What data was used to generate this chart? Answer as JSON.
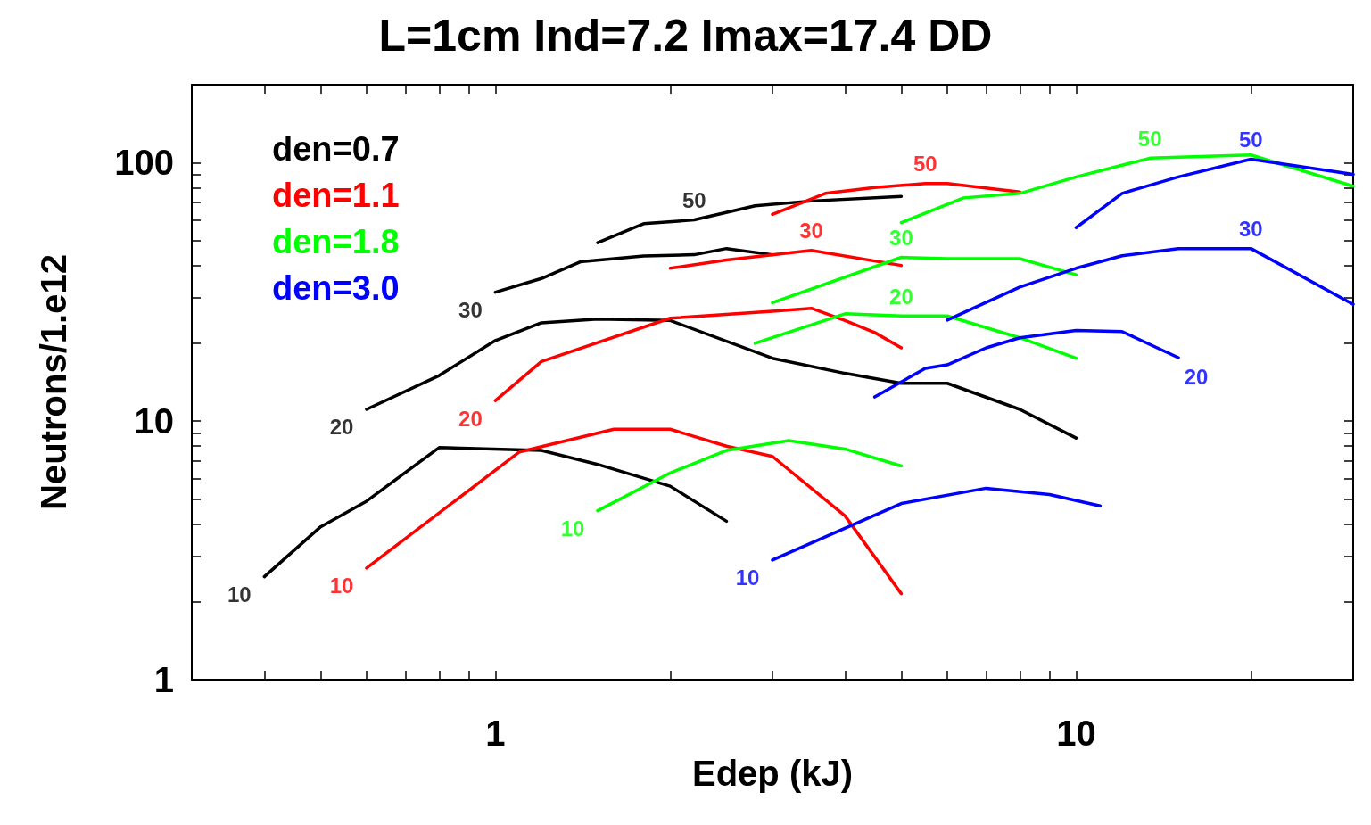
{
  "chart_data": {
    "type": "line",
    "title": "L=1cm Ind=7.2 Imax=17.4 DD",
    "xlabel": "Edep (kJ)",
    "ylabel": "Neutrons/1.e12",
    "log": "xy",
    "xlim": [
      0.3,
      30
    ],
    "ylim": [
      1,
      200
    ],
    "xticks": [
      {
        "value": 0.3,
        "label": null
      },
      {
        "value": 0.4,
        "label": null
      },
      {
        "value": 0.5,
        "label": null
      },
      {
        "value": 0.6,
        "label": null
      },
      {
        "value": 0.7,
        "label": null
      },
      {
        "value": 0.8,
        "label": null
      },
      {
        "value": 0.9,
        "label": null
      },
      1,
      {
        "value": 2,
        "label": null
      },
      {
        "value": 3,
        "label": null
      },
      {
        "value": 4,
        "label": null
      },
      {
        "value": 5,
        "label": null
      },
      {
        "value": 6,
        "label": null
      },
      {
        "value": 7,
        "label": null
      },
      {
        "value": 8,
        "label": null
      },
      {
        "value": 9,
        "label": null
      },
      10,
      {
        "value": 20,
        "label": null
      },
      {
        "value": 30,
        "label": null
      }
    ],
    "yticks": [
      1,
      {
        "value": 2,
        "label": null
      },
      {
        "value": 3,
        "label": null
      },
      {
        "value": 4,
        "label": null
      },
      {
        "value": 5,
        "label": null
      },
      {
        "value": 6,
        "label": null
      },
      {
        "value": 7,
        "label": null
      },
      {
        "value": 8,
        "label": null
      },
      {
        "value": 9,
        "label": null
      },
      10,
      {
        "value": 20,
        "label": null
      },
      {
        "value": 30,
        "label": null
      },
      {
        "value": 40,
        "label": null
      },
      {
        "value": 50,
        "label": null
      },
      {
        "value": 60,
        "label": null
      },
      {
        "value": 70,
        "label": null
      },
      {
        "value": 80,
        "label": null
      },
      {
        "value": 90,
        "label": null
      },
      100,
      {
        "value": 200,
        "label": null
      }
    ],
    "grid": false,
    "legend": "top left",
    "marker": "none",
    "line_style": "solid",
    "series": [
      {
        "name": "den=0.7",
        "color": "#000000",
        "x": [
          0.4,
          0.5,
          0.6,
          0.8,
          1.2,
          1.5,
          2.0,
          2.5
        ],
        "values": [
          2.5,
          3.9,
          4.9,
          7.9,
          7.7,
          6.8,
          5.6,
          4.1
        ]
      },
      {
        "color": "#000000",
        "x": [
          0.6,
          0.8,
          1.0,
          1.2,
          1.5,
          2.0,
          3.0,
          4.0,
          5.0,
          6.0,
          8.0,
          10
        ],
        "values": [
          11.1,
          15,
          20.5,
          24,
          24.8,
          24.5,
          17.5,
          15.3,
          14,
          14,
          11.1,
          8.6
        ]
      },
      {
        "color": "#000000",
        "x": [
          1.0,
          1.2,
          1.4,
          1.8,
          2.2,
          2.5,
          3.0
        ],
        "values": [
          31.5,
          35.6,
          41.3,
          43.5,
          44,
          46.5,
          44
        ]
      },
      {
        "color": "#000000",
        "x": [
          1.5,
          1.8,
          2.2,
          2.8,
          3.5,
          5.0
        ],
        "values": [
          49,
          58,
          60,
          68,
          71,
          74
        ]
      },
      {
        "name": "den=1.1",
        "color": "#ff0000",
        "x": [
          0.6,
          1.1,
          1.6,
          2.0,
          2.5,
          3.0,
          4.0,
          5.0
        ],
        "values": [
          2.7,
          7.6,
          9.3,
          9.3,
          8,
          7.3,
          4.3,
          2.15
        ]
      },
      {
        "color": "#ff0000",
        "x": [
          1.0,
          1.2,
          2.0,
          3.0,
          3.5,
          4.0,
          4.5,
          5.0
        ],
        "values": [
          12,
          17,
          25,
          26.6,
          27.3,
          24.5,
          22,
          19.2
        ]
      },
      {
        "color": "#ff0000",
        "x": [
          2.0,
          2.5,
          3.5,
          5.0
        ],
        "values": [
          39,
          42,
          45.7,
          40
        ]
      },
      {
        "color": "#ff0000",
        "x": [
          3.0,
          3.7,
          4.5,
          5.5,
          6.0,
          8.0
        ],
        "values": [
          63,
          76,
          80,
          83,
          83,
          77
        ]
      },
      {
        "name": "den=1.8",
        "color": "#00ff00",
        "x": [
          1.5,
          2.0,
          2.5,
          3.2,
          4.0,
          5.0
        ],
        "values": [
          4.5,
          6.3,
          7.7,
          8.4,
          7.8,
          6.7
        ]
      },
      {
        "color": "#00ff00",
        "x": [
          2.8,
          4.0,
          5.0,
          6.0,
          8.0,
          10
        ],
        "values": [
          20,
          26,
          25.5,
          25.5,
          21,
          17.5
        ]
      },
      {
        "color": "#00ff00",
        "x": [
          3.0,
          5.0,
          6.0,
          8.0,
          10
        ],
        "values": [
          28.7,
          43,
          42.5,
          42.5,
          36.8
        ]
      },
      {
        "color": "#00ff00",
        "x": [
          5.0,
          6.4,
          8.0,
          10,
          13.4,
          20,
          30
        ],
        "values": [
          58.6,
          73,
          76,
          88,
          104,
          107,
          81
        ]
      },
      {
        "name": "den=3.0",
        "color": "#0000ff",
        "x": [
          3.0,
          5.0,
          7.0,
          9.0,
          11
        ],
        "values": [
          2.9,
          4.8,
          5.5,
          5.2,
          4.7
        ]
      },
      {
        "color": "#0000ff",
        "x": [
          4.5,
          5.5,
          6.0,
          7.0,
          8.0,
          10,
          12,
          15
        ],
        "values": [
          12.4,
          16,
          16.5,
          19.2,
          21,
          22.4,
          22.2,
          17.6
        ]
      },
      {
        "color": "#0000ff",
        "x": [
          6.0,
          8.0,
          10,
          12,
          15,
          20,
          30
        ],
        "values": [
          24.6,
          33,
          39,
          43.6,
          46.5,
          46.5,
          28.3
        ]
      },
      {
        "color": "#0000ff",
        "x": [
          10,
          12,
          15,
          20,
          30
        ],
        "values": [
          56,
          76,
          88,
          103,
          90
        ]
      }
    ],
    "annotations": [
      {
        "text": "10",
        "x": 0.4,
        "y": 2.5
      },
      {
        "text": "20",
        "x": 0.6,
        "y": 11.1
      },
      {
        "text": "30",
        "x": 1.0,
        "y": 31.5
      },
      {
        "text": "50",
        "x": 2.2,
        "y": 60
      },
      {
        "text": "10",
        "x": 0.6,
        "y": 2.7
      },
      {
        "text": "20",
        "x": 1.0,
        "y": 12
      },
      {
        "text": "30",
        "x": 3.5,
        "y": 45.7
      },
      {
        "text": "50",
        "x": 5.5,
        "y": 83
      },
      {
        "text": "10",
        "x": 1.5,
        "y": 4.5
      },
      {
        "text": "20",
        "x": 5.0,
        "y": 25.5
      },
      {
        "text": "30",
        "x": 5.0,
        "y": 43
      },
      {
        "text": "50",
        "x": 13.4,
        "y": 104
      },
      {
        "text": "10",
        "x": 3.0,
        "y": 2.9
      },
      {
        "text": "20",
        "x": 15,
        "y": 17.6
      },
      {
        "text": "30",
        "x": 20,
        "y": 46.5
      },
      {
        "text": "50",
        "x": 20,
        "y": 103
      }
    ]
  }
}
